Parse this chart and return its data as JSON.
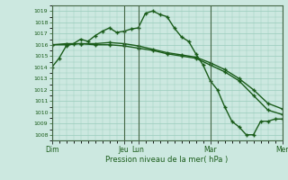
{
  "xlabel": "Pression niveau de la mer( hPa )",
  "ylim": [
    1007.5,
    1019.5
  ],
  "yticks": [
    1008,
    1009,
    1010,
    1011,
    1012,
    1013,
    1014,
    1015,
    1016,
    1017,
    1018,
    1019
  ],
  "bg_color": "#cce8e0",
  "grid_color": "#99ccbb",
  "line_color": "#1a5c1a",
  "tick_label_color": "#1a5c1a",
  "x_day_labels": [
    "Dim",
    "Jeu",
    "Lun",
    "Mar",
    "Mer"
  ],
  "x_day_positions": [
    0,
    60,
    72,
    132,
    192
  ],
  "xlim": [
    0,
    192
  ],
  "series": [
    {
      "x": [
        0,
        6,
        12,
        18,
        24,
        30,
        36,
        42,
        48,
        54,
        60,
        66,
        72,
        78,
        84,
        90,
        96,
        102,
        108,
        114,
        120,
        126,
        132,
        138,
        144,
        150,
        156,
        162,
        168,
        174,
        180,
        186,
        192
      ],
      "y": [
        1014.0,
        1014.8,
        1015.9,
        1016.1,
        1016.5,
        1016.3,
        1016.8,
        1017.2,
        1017.5,
        1017.1,
        1017.2,
        1017.4,
        1017.5,
        1018.8,
        1019.0,
        1018.7,
        1018.5,
        1017.5,
        1016.7,
        1016.3,
        1015.2,
        1014.2,
        1012.8,
        1012.0,
        1010.5,
        1009.2,
        1008.7,
        1008.0,
        1008.0,
        1009.2,
        1009.2,
        1009.4,
        1009.4
      ],
      "marker": "+",
      "lw": 1.0,
      "ms": 3.5
    },
    {
      "x": [
        0,
        12,
        24,
        36,
        48,
        60,
        72,
        84,
        96,
        108,
        120,
        132,
        144,
        156,
        168,
        180,
        192
      ],
      "y": [
        1016.0,
        1016.0,
        1016.1,
        1016.0,
        1016.0,
        1015.9,
        1015.7,
        1015.5,
        1015.2,
        1015.0,
        1014.8,
        1014.2,
        1013.6,
        1012.8,
        1011.5,
        1010.2,
        1009.8
      ],
      "marker": "+",
      "lw": 1.0,
      "ms": 3.0
    },
    {
      "x": [
        0,
        12,
        24,
        36,
        48,
        60,
        72,
        84,
        96,
        108,
        120,
        132,
        144,
        156,
        168,
        180,
        192
      ],
      "y": [
        1016.0,
        1016.1,
        1016.1,
        1016.1,
        1016.2,
        1016.1,
        1015.9,
        1015.6,
        1015.3,
        1015.1,
        1014.9,
        1014.4,
        1013.8,
        1013.0,
        1012.0,
        1010.8,
        1010.3
      ],
      "marker": "+",
      "lw": 1.0,
      "ms": 3.0
    }
  ]
}
